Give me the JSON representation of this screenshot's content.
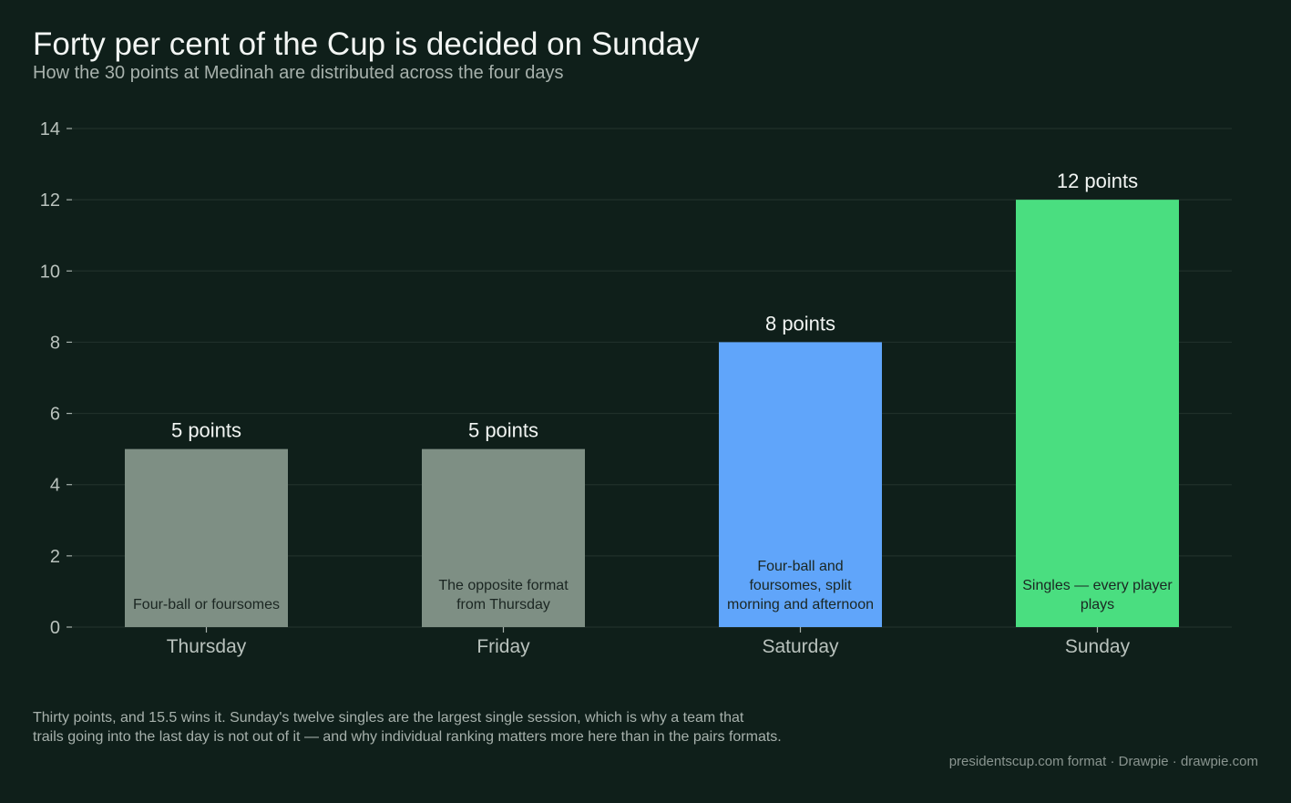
{
  "header": {
    "title": "Forty per cent of the Cup is decided on Sunday",
    "subtitle": "How the 30 points at Medinah are distributed across the four days"
  },
  "chart_data": {
    "type": "bar",
    "categories": [
      "Thursday",
      "Friday",
      "Saturday",
      "Sunday"
    ],
    "values": [
      5,
      5,
      8,
      12
    ],
    "value_labels": [
      "5 points",
      "5 points",
      "8 points",
      "12 points"
    ],
    "descriptions": [
      [
        "Four-ball or foursomes"
      ],
      [
        "The opposite format",
        "from Thursday"
      ],
      [
        "Four-ball and",
        "foursomes, split",
        "morning and afternoon"
      ],
      [
        "Singles — every player",
        "plays"
      ]
    ],
    "colors": [
      "#7e8f84",
      "#7e8f84",
      "#60a5fa",
      "#4ade80"
    ],
    "ylim": [
      0,
      14
    ],
    "yticks": [
      0,
      2,
      4,
      6,
      8,
      10,
      12,
      14
    ],
    "grid": true,
    "xlabel": "",
    "ylabel": ""
  },
  "footer": {
    "note_lines": [
      "Thirty points, and 15.5 wins it. Sunday's twelve singles are the largest single session, which is why a team that",
      "trails going into the last day is not out of it — and why individual ranking matters more here than in the pairs formats."
    ],
    "source": "presidentscup.com format  ·  Drawpie · drawpie.com"
  }
}
